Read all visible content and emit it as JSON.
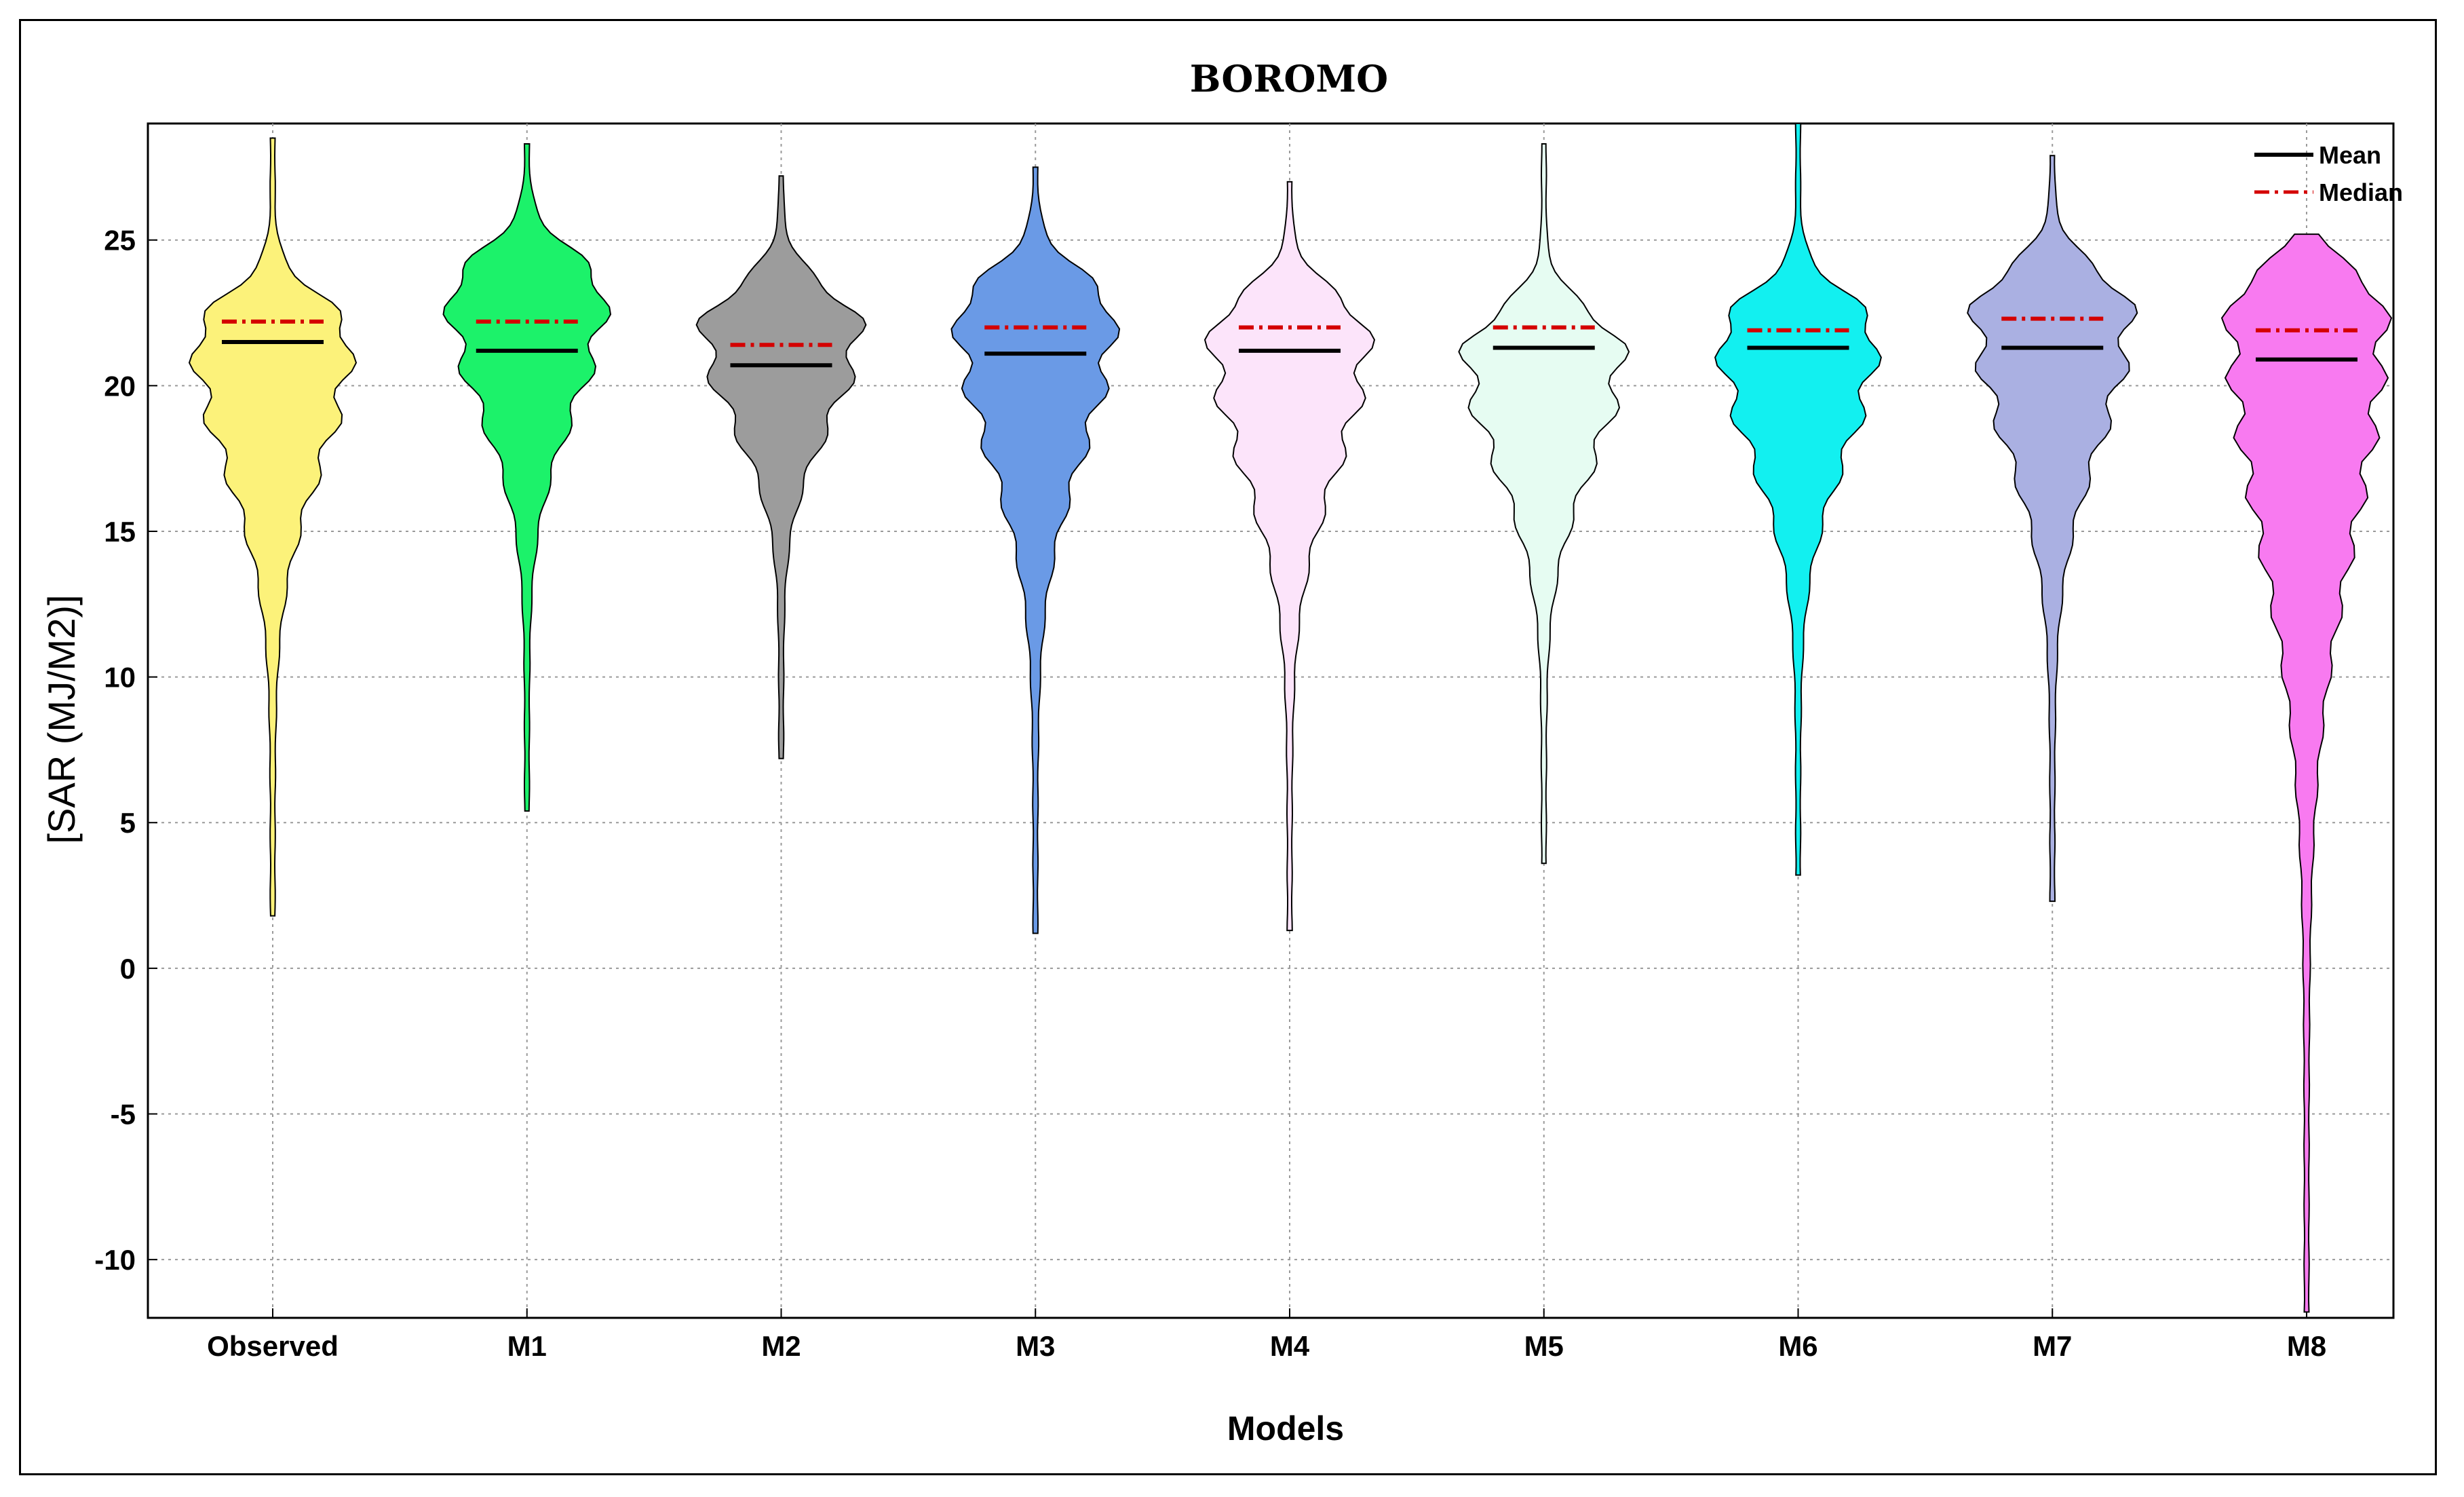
{
  "chart_data": {
    "type": "violin",
    "title": "BOROMO",
    "xlabel": "Models",
    "ylabel": "[SAR (MJ/M2)]",
    "ylim": [
      -12,
      29
    ],
    "yticks": [
      -10,
      -5,
      0,
      5,
      10,
      15,
      20,
      25
    ],
    "grid": true,
    "legend": {
      "position": "top-right",
      "entries": [
        {
          "label": "Mean",
          "color": "#000000",
          "style": "solid"
        },
        {
          "label": "Median",
          "color": "#d40000",
          "style": "dash-dot"
        }
      ]
    },
    "categories": [
      "Observed",
      "M1",
      "M2",
      "M3",
      "M4",
      "M5",
      "M6",
      "M7",
      "M8"
    ],
    "series": [
      {
        "category": "Observed",
        "color": "#fcf27a",
        "mean": 21.5,
        "median": 22.2,
        "min": 1.8,
        "max": 28.5,
        "peak": 21.7
      },
      {
        "category": "M1",
        "color": "#1cf26a",
        "mean": 21.2,
        "median": 22.2,
        "min": 5.4,
        "max": 28.3,
        "peak": 23.2
      },
      {
        "category": "M2",
        "color": "#9c9c9c",
        "mean": 20.7,
        "median": 21.4,
        "min": 7.2,
        "max": 27.2,
        "peak": 22.0
      },
      {
        "category": "M3",
        "color": "#6a9ae6",
        "mean": 21.1,
        "median": 22.0,
        "min": 1.2,
        "max": 27.5,
        "peak": 22.5
      },
      {
        "category": "M4",
        "color": "#fce4fa",
        "mean": 21.2,
        "median": 22.0,
        "min": 1.3,
        "max": 27.0,
        "peak": 21.8
      },
      {
        "category": "M5",
        "color": "#e6fcf2",
        "mean": 21.3,
        "median": 22.0,
        "min": 3.6,
        "max": 28.3,
        "peak": 21.2
      },
      {
        "category": "M6",
        "color": "#12f0f0",
        "mean": 21.3,
        "median": 21.9,
        "min": 3.2,
        "max": 29.0,
        "peak": 21.8
      },
      {
        "category": "M7",
        "color": "#aab0e2",
        "mean": 21.3,
        "median": 22.3,
        "min": 2.3,
        "max": 27.9,
        "peak": 22.6
      },
      {
        "category": "M8",
        "color": "#f87af0",
        "mean": 20.9,
        "median": 21.9,
        "min": -11.8,
        "max": 25.2,
        "peak": 22.6
      }
    ]
  }
}
